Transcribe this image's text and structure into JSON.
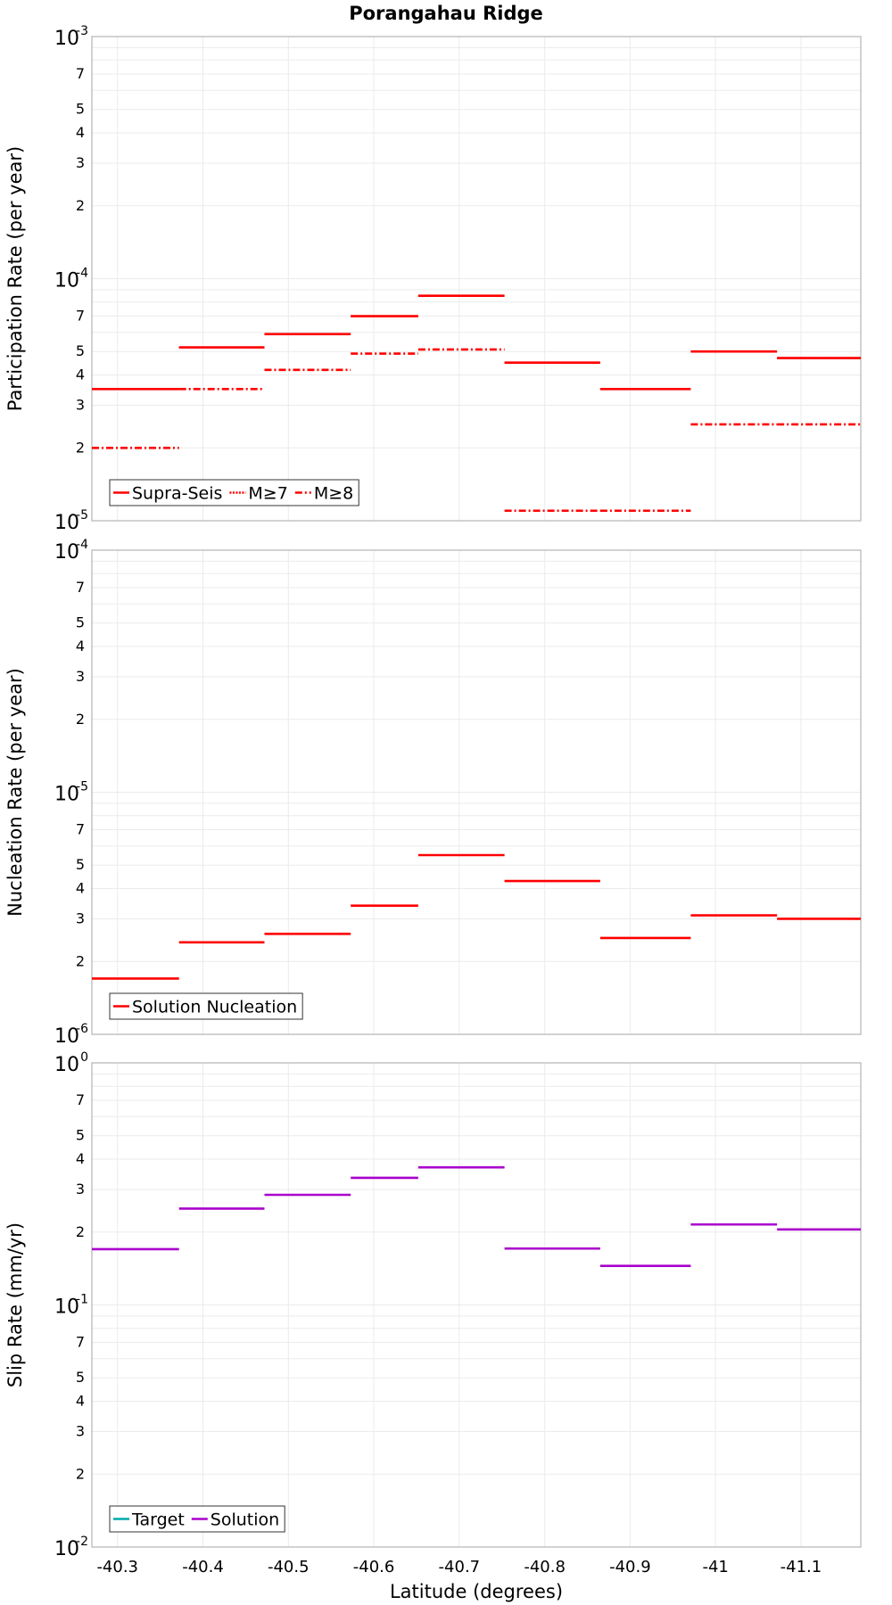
{
  "title": "Porangahau Ridge",
  "chart_data": [
    {
      "type": "line",
      "title": "Porangahau Ridge",
      "xlabel": "",
      "ylabel": "Participation Rate (per year)",
      "yscale": "log",
      "xlim": [
        -40.27,
        -41.17
      ],
      "ylim": [
        1e-05,
        0.001
      ],
      "y_decade_labels": [
        {
          "base": "10",
          "exp": "-3"
        },
        {
          "base": "10",
          "exp": "-4"
        },
        {
          "base": "10",
          "exp": "-5"
        }
      ],
      "y_minor_labels": [
        "7",
        "5",
        "4",
        "3",
        "2"
      ],
      "grid": true,
      "legend": "bottom-left",
      "series": [
        {
          "name": "Supra-Seis",
          "style": "solid",
          "color": "#ff0000",
          "segments": [
            [
              -40.27,
              -40.372,
              3.5e-05
            ],
            [
              -40.372,
              -40.472,
              5.2e-05
            ],
            [
              -40.472,
              -40.573,
              5.9e-05
            ],
            [
              -40.573,
              -40.652,
              7e-05
            ],
            [
              -40.652,
              -40.753,
              8.5e-05
            ],
            [
              -40.753,
              -40.865,
              4.5e-05
            ],
            [
              -40.865,
              -40.971,
              3.5e-05
            ],
            [
              -40.971,
              -41.072,
              5e-05
            ],
            [
              -41.072,
              -41.17,
              4.7e-05
            ]
          ]
        },
        {
          "name": "M≥7",
          "style": "dotted",
          "color": "#ff0000",
          "segments": [
            [
              -40.27,
              -40.372,
              3.5e-05
            ],
            [
              -40.372,
              -40.472,
              5.2e-05
            ],
            [
              -40.472,
              -40.573,
              5.9e-05
            ],
            [
              -40.573,
              -40.652,
              7e-05
            ],
            [
              -40.652,
              -40.753,
              8.5e-05
            ],
            [
              -40.753,
              -40.865,
              4.5e-05
            ],
            [
              -40.865,
              -40.971,
              3.5e-05
            ],
            [
              -40.971,
              -41.072,
              5e-05
            ],
            [
              -41.072,
              -41.17,
              4.7e-05
            ]
          ]
        },
        {
          "name": "M≥8",
          "style": "dashdot",
          "color": "#ff0000",
          "segments": [
            [
              -40.27,
              -40.372,
              2e-05
            ],
            [
              -40.372,
              -40.472,
              3.5e-05
            ],
            [
              -40.472,
              -40.573,
              4.2e-05
            ],
            [
              -40.573,
              -40.652,
              4.9e-05
            ],
            [
              -40.652,
              -40.753,
              5.1e-05
            ],
            [
              -40.753,
              -40.865,
              1.1e-05
            ],
            [
              -40.865,
              -40.971,
              1.1e-05
            ],
            [
              -40.971,
              -41.072,
              2.5e-05
            ],
            [
              -41.072,
              -41.17,
              2.5e-05
            ]
          ]
        }
      ]
    },
    {
      "type": "line",
      "xlabel": "",
      "ylabel": "Nucleation Rate (per year)",
      "yscale": "log",
      "xlim": [
        -40.27,
        -41.17
      ],
      "ylim": [
        1e-06,
        0.0001
      ],
      "y_decade_labels": [
        {
          "base": "10",
          "exp": "-4"
        },
        {
          "base": "10",
          "exp": "-5"
        },
        {
          "base": "10",
          "exp": "-6"
        }
      ],
      "y_minor_labels": [
        "7",
        "5",
        "4",
        "3",
        "2"
      ],
      "grid": true,
      "legend": "bottom-left",
      "series": [
        {
          "name": "Solution Nucleation",
          "style": "solid",
          "color": "#ff0000",
          "segments": [
            [
              -40.27,
              -40.372,
              1.7e-06
            ],
            [
              -40.372,
              -40.472,
              2.4e-06
            ],
            [
              -40.472,
              -40.573,
              2.6e-06
            ],
            [
              -40.573,
              -40.652,
              3.4e-06
            ],
            [
              -40.652,
              -40.753,
              5.5e-06
            ],
            [
              -40.753,
              -40.865,
              4.3e-06
            ],
            [
              -40.865,
              -40.971,
              2.5e-06
            ],
            [
              -40.971,
              -41.072,
              3.1e-06
            ],
            [
              -41.072,
              -41.17,
              3e-06
            ]
          ]
        }
      ]
    },
    {
      "type": "line",
      "xlabel": "Latitude (degrees)",
      "ylabel": "Slip Rate (mm/yr)",
      "yscale": "log",
      "xlim": [
        -40.27,
        -41.17
      ],
      "ylim": [
        0.01,
        1
      ],
      "x_ticks": [
        -40.3,
        -40.4,
        -40.5,
        -40.6,
        -40.7,
        -40.8,
        -40.9,
        -41,
        -41.1
      ],
      "x_tick_labels": [
        "-40.3",
        "-40.4",
        "-40.5",
        "-40.6",
        "-40.7",
        "-40.8",
        "-40.9",
        "-41",
        "-41.1"
      ],
      "y_decade_labels": [
        {
          "base": "10",
          "exp": "0"
        },
        {
          "base": "10",
          "exp": "-1"
        },
        {
          "base": "10",
          "exp": "-2"
        }
      ],
      "y_minor_labels": [
        "7",
        "5",
        "4",
        "3",
        "2"
      ],
      "grid": true,
      "legend": "bottom-left",
      "series": [
        {
          "name": "Target",
          "style": "solid",
          "color": "#00aaaa",
          "segments": []
        },
        {
          "name": "Solution",
          "style": "solid",
          "color": "#aa00cc",
          "segments": [
            [
              -40.27,
              -40.372,
              0.17
            ],
            [
              -40.372,
              -40.472,
              0.25
            ],
            [
              -40.472,
              -40.573,
              0.285
            ],
            [
              -40.573,
              -40.652,
              0.335
            ],
            [
              -40.652,
              -40.753,
              0.37
            ],
            [
              -40.753,
              -40.865,
              0.171
            ],
            [
              -40.865,
              -40.971,
              0.145
            ],
            [
              -40.971,
              -41.072,
              0.215
            ],
            [
              -41.072,
              -41.17,
              0.205
            ]
          ]
        }
      ]
    }
  ]
}
